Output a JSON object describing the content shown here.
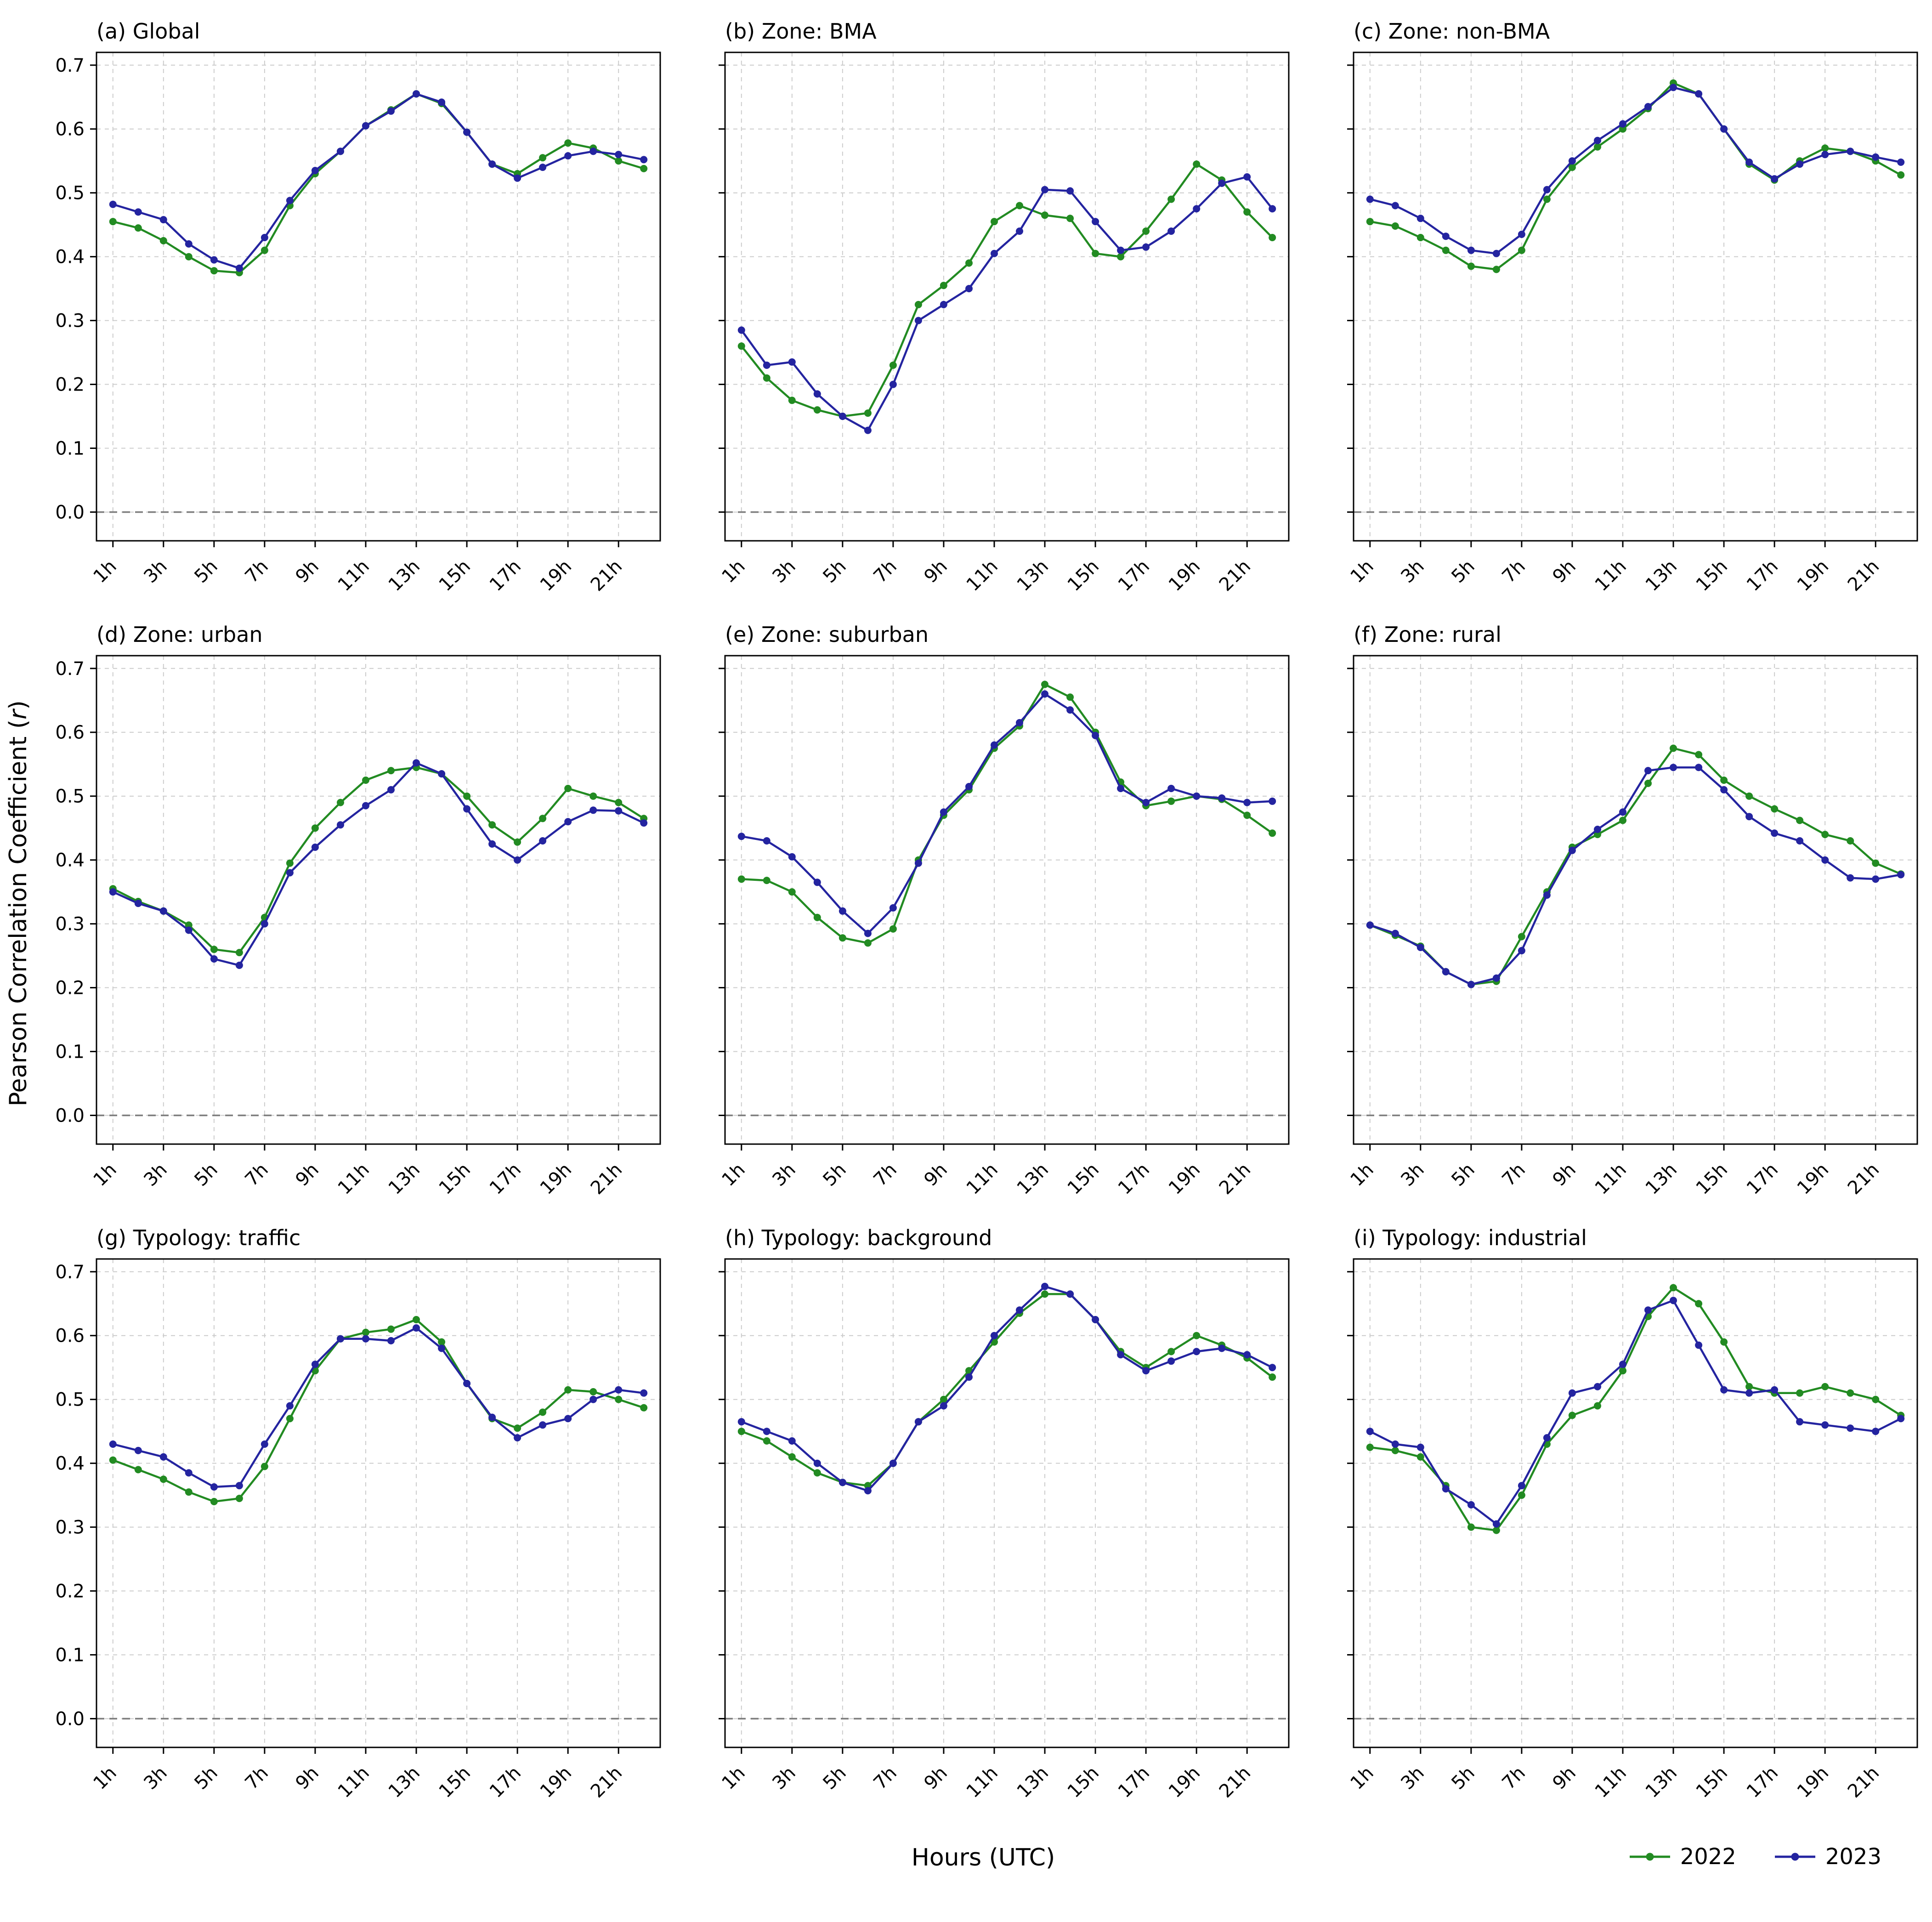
{
  "chart_data": {
    "type": "line",
    "xlabel": "Hours (UTC)",
    "ylabel": {
      "text": "Pearson Correlation Coefficient (",
      "var": "r",
      "close": ")"
    },
    "x_hours": [
      1,
      2,
      3,
      4,
      5,
      6,
      7,
      8,
      9,
      10,
      11,
      12,
      13,
      14,
      15,
      16,
      17,
      18,
      19,
      20,
      21,
      22
    ],
    "xtick_positions": [
      1,
      3,
      5,
      7,
      9,
      11,
      13,
      15,
      17,
      19,
      21
    ],
    "xticklabels": [
      "1h",
      "3h",
      "5h",
      "7h",
      "9h",
      "11h",
      "13h",
      "15h",
      "17h",
      "19h",
      "21h"
    ],
    "yticks": [
      0.0,
      0.1,
      0.2,
      0.3,
      0.4,
      0.5,
      0.6,
      0.7
    ],
    "ylim": [
      -0.045,
      0.72
    ],
    "zero_line": 0.0,
    "grid": true,
    "legend": [
      "2022",
      "2023"
    ],
    "legend_position": "bottom-right",
    "colors": {
      "2022": "#228B22",
      "2023": "#2424a0"
    },
    "panels": [
      {
        "title": "(a) Global",
        "series": {
          "2022": [
            0.455,
            0.445,
            0.425,
            0.4,
            0.378,
            0.375,
            0.41,
            0.48,
            0.53,
            0.565,
            0.605,
            0.63,
            0.655,
            0.64,
            0.595,
            0.545,
            0.53,
            0.555,
            0.578,
            0.57,
            0.55,
            0.538
          ],
          "2023": [
            0.482,
            0.47,
            0.458,
            0.42,
            0.395,
            0.382,
            0.43,
            0.488,
            0.535,
            0.565,
            0.605,
            0.628,
            0.655,
            0.642,
            0.595,
            0.545,
            0.523,
            0.54,
            0.558,
            0.565,
            0.56,
            0.552
          ]
        }
      },
      {
        "title": "(b) Zone: BMA",
        "series": {
          "2022": [
            0.26,
            0.21,
            0.175,
            0.16,
            0.15,
            0.155,
            0.23,
            0.325,
            0.355,
            0.39,
            0.455,
            0.48,
            0.465,
            0.46,
            0.405,
            0.4,
            0.44,
            0.49,
            0.545,
            0.52,
            0.47,
            0.43
          ],
          "2023": [
            0.285,
            0.23,
            0.235,
            0.185,
            0.15,
            0.128,
            0.2,
            0.3,
            0.325,
            0.35,
            0.405,
            0.44,
            0.505,
            0.503,
            0.455,
            0.41,
            0.415,
            0.44,
            0.475,
            0.515,
            0.525,
            0.475
          ]
        }
      },
      {
        "title": "(c) Zone: non-BMA",
        "series": {
          "2022": [
            0.455,
            0.448,
            0.43,
            0.41,
            0.385,
            0.38,
            0.41,
            0.49,
            0.54,
            0.572,
            0.6,
            0.632,
            0.672,
            0.655,
            0.6,
            0.545,
            0.52,
            0.55,
            0.57,
            0.565,
            0.55,
            0.528
          ],
          "2023": [
            0.49,
            0.48,
            0.46,
            0.432,
            0.41,
            0.405,
            0.435,
            0.505,
            0.55,
            0.582,
            0.608,
            0.635,
            0.665,
            0.655,
            0.6,
            0.548,
            0.522,
            0.545,
            0.56,
            0.565,
            0.556,
            0.548
          ]
        }
      },
      {
        "title": "(d) Zone: urban",
        "series": {
          "2022": [
            0.355,
            0.335,
            0.32,
            0.298,
            0.26,
            0.255,
            0.31,
            0.395,
            0.45,
            0.49,
            0.525,
            0.54,
            0.545,
            0.535,
            0.5,
            0.455,
            0.428,
            0.465,
            0.512,
            0.5,
            0.49,
            0.465
          ],
          "2023": [
            0.35,
            0.332,
            0.32,
            0.29,
            0.245,
            0.235,
            0.3,
            0.38,
            0.42,
            0.455,
            0.485,
            0.51,
            0.552,
            0.535,
            0.48,
            0.425,
            0.4,
            0.43,
            0.46,
            0.478,
            0.477,
            0.458
          ]
        }
      },
      {
        "title": "(e) Zone: suburban",
        "series": {
          "2022": [
            0.37,
            0.368,
            0.35,
            0.31,
            0.278,
            0.27,
            0.292,
            0.4,
            0.47,
            0.51,
            0.575,
            0.61,
            0.675,
            0.655,
            0.6,
            0.522,
            0.485,
            0.492,
            0.5,
            0.495,
            0.47,
            0.442
          ],
          "2023": [
            0.437,
            0.43,
            0.405,
            0.365,
            0.32,
            0.285,
            0.325,
            0.395,
            0.475,
            0.515,
            0.58,
            0.615,
            0.66,
            0.635,
            0.595,
            0.512,
            0.49,
            0.512,
            0.5,
            0.497,
            0.49,
            0.492
          ]
        }
      },
      {
        "title": "(f) Zone: rural",
        "series": {
          "2022": [
            0.298,
            0.282,
            0.265,
            0.225,
            0.205,
            0.21,
            0.28,
            0.35,
            0.42,
            0.44,
            0.462,
            0.52,
            0.575,
            0.565,
            0.525,
            0.5,
            0.48,
            0.462,
            0.44,
            0.43,
            0.395,
            0.378
          ],
          "2023": [
            0.298,
            0.285,
            0.263,
            0.225,
            0.205,
            0.215,
            0.258,
            0.345,
            0.415,
            0.448,
            0.475,
            0.54,
            0.545,
            0.545,
            0.51,
            0.468,
            0.442,
            0.43,
            0.4,
            0.372,
            0.37,
            0.377
          ]
        }
      },
      {
        "title": "(g) Typology: traffic",
        "series": {
          "2022": [
            0.405,
            0.39,
            0.375,
            0.355,
            0.34,
            0.345,
            0.395,
            0.47,
            0.545,
            0.595,
            0.605,
            0.61,
            0.625,
            0.59,
            0.525,
            0.47,
            0.455,
            0.48,
            0.515,
            0.512,
            0.5,
            0.487
          ],
          "2023": [
            0.43,
            0.42,
            0.41,
            0.385,
            0.363,
            0.365,
            0.43,
            0.49,
            0.555,
            0.595,
            0.595,
            0.592,
            0.612,
            0.58,
            0.525,
            0.472,
            0.44,
            0.46,
            0.47,
            0.5,
            0.515,
            0.51
          ]
        }
      },
      {
        "title": "(h) Typology: background",
        "series": {
          "2022": [
            0.45,
            0.435,
            0.41,
            0.385,
            0.37,
            0.365,
            0.4,
            0.465,
            0.5,
            0.545,
            0.59,
            0.635,
            0.665,
            0.665,
            0.625,
            0.575,
            0.55,
            0.575,
            0.6,
            0.585,
            0.565,
            0.535
          ],
          "2023": [
            0.465,
            0.45,
            0.435,
            0.4,
            0.37,
            0.357,
            0.4,
            0.465,
            0.49,
            0.535,
            0.6,
            0.64,
            0.677,
            0.665,
            0.625,
            0.57,
            0.545,
            0.56,
            0.575,
            0.58,
            0.57,
            0.55
          ]
        }
      },
      {
        "title": "(i) Typology: industrial",
        "series": {
          "2022": [
            0.425,
            0.42,
            0.41,
            0.365,
            0.3,
            0.295,
            0.35,
            0.43,
            0.475,
            0.49,
            0.545,
            0.63,
            0.675,
            0.65,
            0.59,
            0.52,
            0.51,
            0.51,
            0.52,
            0.51,
            0.5,
            0.475
          ],
          "2023": [
            0.45,
            0.43,
            0.425,
            0.36,
            0.335,
            0.305,
            0.365,
            0.44,
            0.51,
            0.52,
            0.555,
            0.64,
            0.655,
            0.585,
            0.515,
            0.51,
            0.515,
            0.465,
            0.46,
            0.455,
            0.45,
            0.47
          ]
        }
      }
    ]
  }
}
